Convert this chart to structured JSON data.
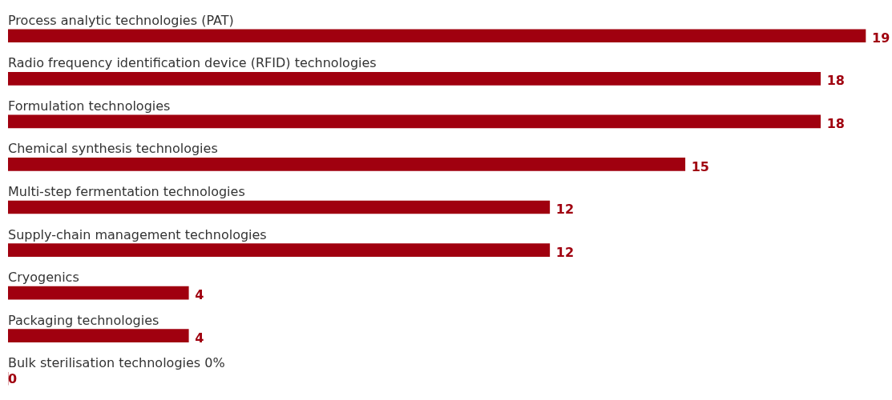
{
  "chart_data": {
    "type": "bar",
    "orientation": "horizontal",
    "categories": [
      "Process analytic technologies (PAT)",
      "Radio frequency identification device (RFID) technologies",
      "Formulation technologies",
      "Chemical synthesis technologies",
      "Multi-step fermentation technologies",
      "Supply-chain management technologies",
      "Cryogenics",
      "Packaging technologies",
      "Bulk sterilisation technologies 0%"
    ],
    "values": [
      19,
      18,
      18,
      15,
      12,
      12,
      4,
      4,
      0
    ],
    "color": "#a0000f",
    "data_labels": true
  }
}
